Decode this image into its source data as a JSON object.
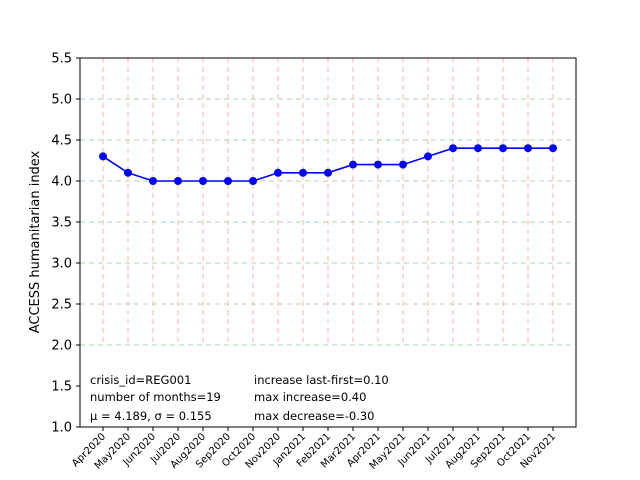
{
  "chart_data": {
    "type": "line",
    "title": "",
    "xlabel": "",
    "ylabel": "ACCESS humanitarian index",
    "ylim": [
      1.0,
      5.5
    ],
    "yticks": [
      "1.0",
      "1.5",
      "2.0",
      "2.5",
      "3.0",
      "3.5",
      "4.0",
      "4.5",
      "5.0",
      "5.5"
    ],
    "categories": [
      "Apr2020",
      "May2020",
      "Jun2020",
      "Jul2020",
      "Aug2020",
      "Sep2020",
      "Oct2020",
      "Nov2020",
      "Jan2021",
      "Feb2021",
      "Mar2021",
      "Apr2021",
      "May2021",
      "Jun2021",
      "Jul2021",
      "Aug2021",
      "Sep2021",
      "Oct2021",
      "Nov2021"
    ],
    "series": [
      {
        "values": [
          4.3,
          4.1,
          4.0,
          4.0,
          4.0,
          4.0,
          4.0,
          4.1,
          4.1,
          4.1,
          4.2,
          4.2,
          4.2,
          4.3,
          4.4,
          4.4,
          4.4,
          4.4,
          4.4
        ],
        "color": "#0000ff"
      }
    ],
    "vertical_grid": {
      "color": "#ffb0b0",
      "from": 2.0,
      "to": 5.5
    },
    "horizontal_grid": {
      "values": [
        2.0,
        2.5,
        3.0,
        3.5,
        4.0,
        4.5,
        5.0
      ],
      "color": "#a8d8a8"
    },
    "annotations": {
      "left": [
        "crisis_id=REG001",
        "number of months=19",
        "μ = 4.189,  σ = 0.155"
      ],
      "right": [
        "increase last-first=0.10",
        "max increase=0.40",
        "max decrease=-0.30"
      ]
    }
  }
}
